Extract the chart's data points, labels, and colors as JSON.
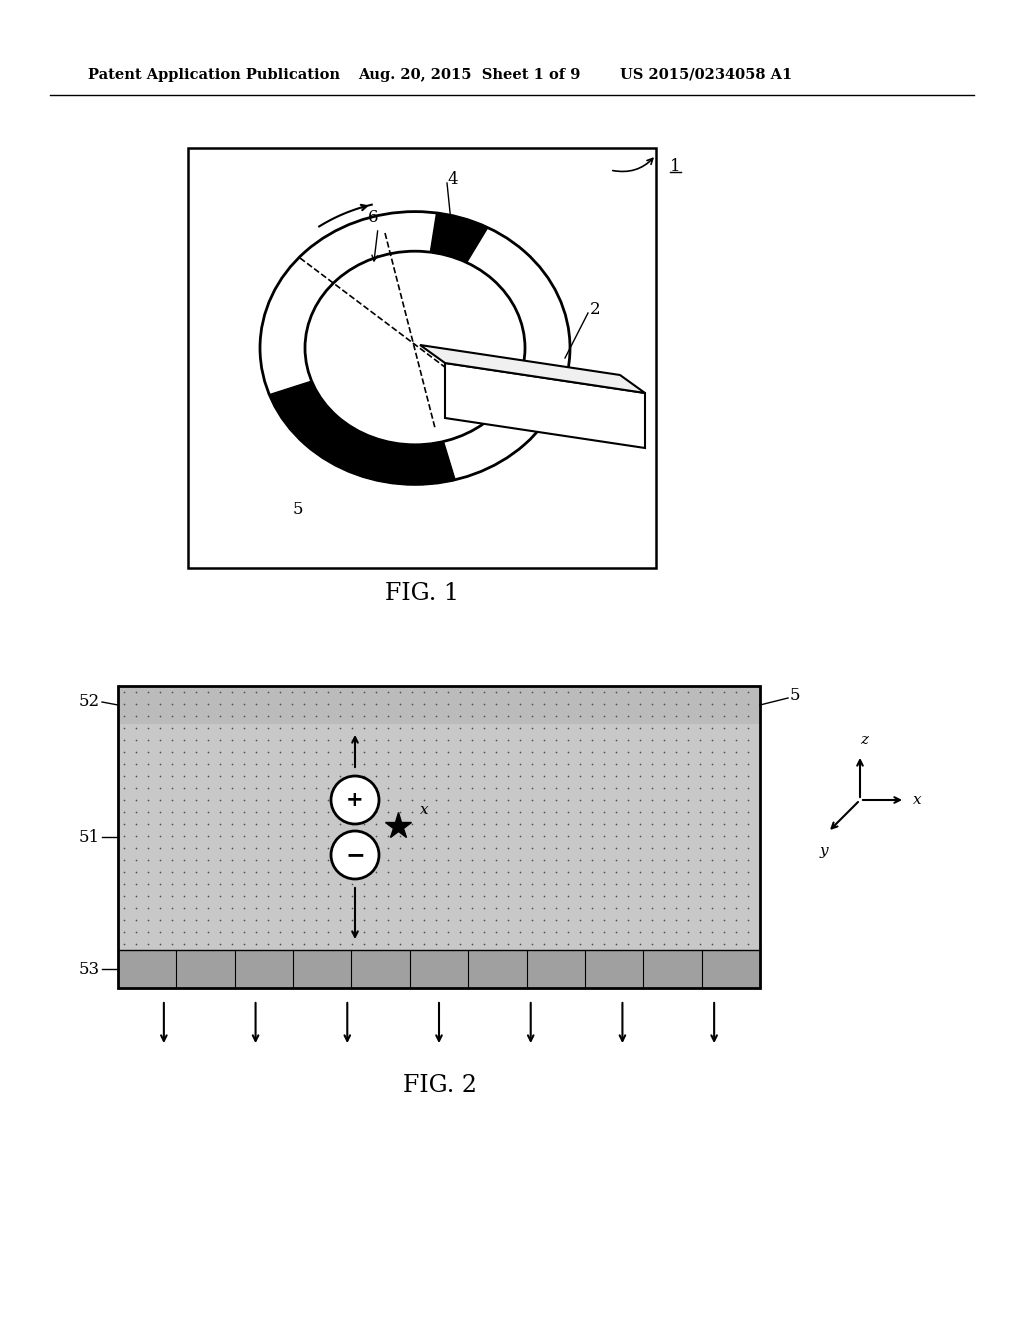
{
  "bg_color": "#ffffff",
  "header_text1": "Patent Application Publication",
  "header_text2": "Aug. 20, 2015  Sheet 1 of 9",
  "header_text3": "US 2015/0234058 A1",
  "fig1_label": "FIG. 1",
  "fig2_label": "FIG. 2"
}
